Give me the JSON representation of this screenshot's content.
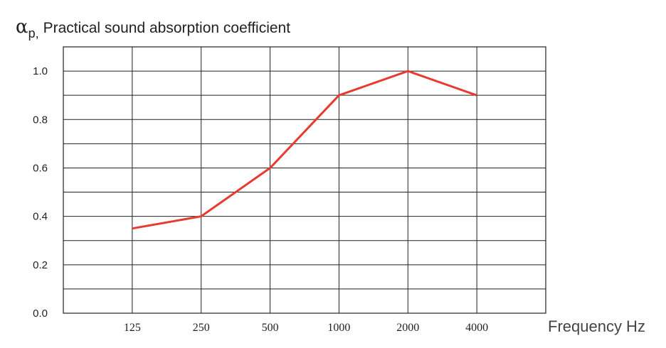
{
  "chart_data": {
    "type": "line",
    "title": "",
    "ylabel": {
      "symbol": "α",
      "subscript": "p,",
      "text": "Practical sound absorption coefficient"
    },
    "xlabel": "Frequency Hz",
    "categories": [
      "125",
      "250",
      "500",
      "1000",
      "2000",
      "4000"
    ],
    "series": [
      {
        "values": [
          0.35,
          0.4,
          0.6,
          0.9,
          1.0,
          0.9
        ],
        "color": "#e63b2e"
      }
    ],
    "ylim": [
      0.0,
      1.1
    ],
    "yticks": [
      "0.0",
      "0.2",
      "0.4",
      "0.6",
      "0.8",
      "1.0"
    ],
    "ytick_values": [
      0.0,
      0.2,
      0.4,
      0.6,
      0.8,
      1.0
    ],
    "grid": true,
    "legend": "none"
  }
}
